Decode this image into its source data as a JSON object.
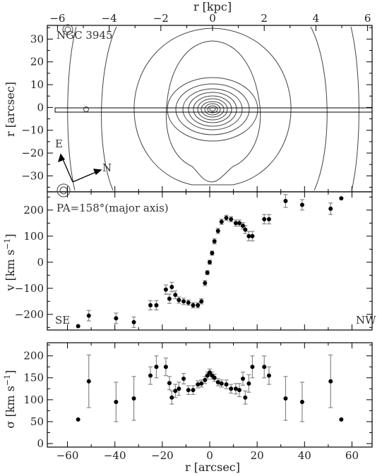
{
  "chart_data": [
    {
      "type": "contour",
      "panel": "image",
      "annotation": "NGC 3945",
      "top_axis_label": "r [kpc]",
      "top_ticks": [
        -6,
        -4,
        -2,
        0,
        2,
        4,
        6
      ],
      "ylabel": "r [arcsec]",
      "yticks": [
        30,
        20,
        10,
        0,
        -10,
        -20,
        -30
      ],
      "ylim": [
        -37,
        36
      ],
      "compass": {
        "east": "E",
        "north": "N"
      }
    },
    {
      "type": "scatter",
      "panel": "velocity",
      "annotation": "PA=158°(major axis)",
      "ylabel": "v [km s⁻¹]",
      "ylabel_main": "v [km s",
      "ylabel_exp": "−1",
      "ylabel_end": "]",
      "yticks": [
        200,
        100,
        0,
        -100,
        -200
      ],
      "ylim": [
        -260,
        270
      ],
      "left_label": "SE",
      "right_label": "NW",
      "x": [
        -55.5,
        -51,
        -39.5,
        -32,
        -25,
        -22.5,
        -18.5,
        -17,
        -16,
        -14.5,
        -13,
        -11,
        -9,
        -7,
        -5,
        -3.5,
        -2,
        -1,
        0,
        1,
        2,
        3.5,
        5,
        7,
        9,
        11,
        12.5,
        14,
        15,
        16.5,
        18,
        23,
        25,
        32,
        39,
        51,
        55.5
      ],
      "y": [
        -245,
        -205,
        -215,
        -230,
        -165,
        -165,
        -105,
        -140,
        -95,
        -125,
        -145,
        -150,
        -155,
        -165,
        -165,
        -150,
        -80,
        -40,
        0,
        35,
        80,
        120,
        155,
        170,
        165,
        150,
        150,
        140,
        125,
        100,
        100,
        165,
        165,
        235,
        220,
        205,
        245
      ],
      "err": [
        0,
        20,
        20,
        20,
        18,
        18,
        18,
        18,
        18,
        15,
        12,
        12,
        10,
        10,
        10,
        10,
        10,
        8,
        8,
        8,
        10,
        10,
        10,
        10,
        10,
        12,
        12,
        12,
        15,
        18,
        18,
        18,
        18,
        25,
        20,
        22,
        0
      ]
    },
    {
      "type": "scatter",
      "panel": "dispersion",
      "xlabel": "r [arcsec]",
      "xticks": [
        -60,
        -40,
        -20,
        0,
        20,
        40,
        60
      ],
      "xlim": [
        -68.5,
        68.5
      ],
      "ylabel": "σ [km s⁻¹]",
      "ylabel_main": "σ [km s",
      "ylabel_exp": "−1",
      "ylabel_end": "]",
      "yticks": [
        200,
        150,
        100,
        50,
        0
      ],
      "ylim": [
        -8,
        230
      ],
      "x": [
        -55.5,
        -51,
        -39.5,
        -32,
        -25,
        -22.5,
        -18.5,
        -17,
        -16,
        -14.5,
        -13,
        -11,
        -9,
        -7,
        -5,
        -3.5,
        -2,
        -1,
        0,
        1,
        2,
        3.5,
        5,
        7,
        9,
        11,
        12.5,
        14,
        15,
        16.5,
        18,
        23,
        25,
        32,
        39,
        51,
        55.5
      ],
      "y": [
        55,
        142,
        95,
        103,
        155,
        175,
        175,
        138,
        105,
        120,
        125,
        148,
        122,
        122,
        135,
        137,
        145,
        155,
        162,
        155,
        150,
        140,
        137,
        135,
        125,
        125,
        122,
        148,
        105,
        137,
        175,
        175,
        155,
        103,
        95,
        142,
        55
      ],
      "err": [
        0,
        60,
        45,
        50,
        20,
        25,
        20,
        15,
        15,
        15,
        15,
        12,
        10,
        10,
        8,
        8,
        8,
        8,
        8,
        8,
        8,
        8,
        8,
        10,
        10,
        12,
        15,
        15,
        15,
        20,
        25,
        25,
        20,
        50,
        45,
        60,
        0
      ]
    }
  ]
}
